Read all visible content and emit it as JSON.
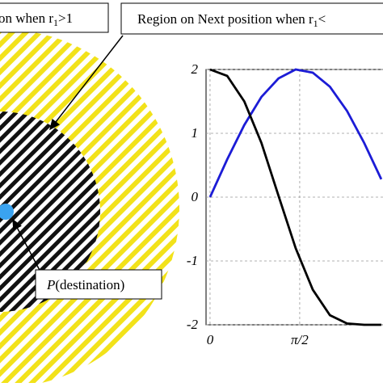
{
  "labels": {
    "box1": [
      "on when r",
      "1",
      ">1"
    ],
    "box2": [
      "Region on Next position when r",
      "1",
      "<"
    ],
    "box3": [
      "P",
      "(destination)"
    ]
  },
  "chart_data": {
    "type": "line",
    "x": [
      0,
      0.3,
      0.6,
      0.9,
      1.2,
      1.5,
      1.8,
      2.1,
      2.4,
      2.7,
      3.0
    ],
    "series": [
      {
        "color": "#1c1cd6",
        "values": [
          0,
          0.59,
          1.13,
          1.57,
          1.86,
          2.0,
          1.95,
          1.73,
          1.35,
          0.85,
          0.28
        ]
      },
      {
        "color": "#000000",
        "values": [
          2,
          1.9,
          1.5,
          0.85,
          0.02,
          -0.8,
          -1.45,
          -1.85,
          -1.98,
          -2,
          -2
        ]
      }
    ],
    "xlim": [
      -0.07,
      3.03
    ],
    "ylim": [
      -2,
      2
    ],
    "xticks": [
      0,
      {
        "value": 1.5708,
        "label": "π/2"
      }
    ],
    "yticks": [
      -2,
      -1,
      0,
      1,
      2
    ],
    "grid": true
  }
}
